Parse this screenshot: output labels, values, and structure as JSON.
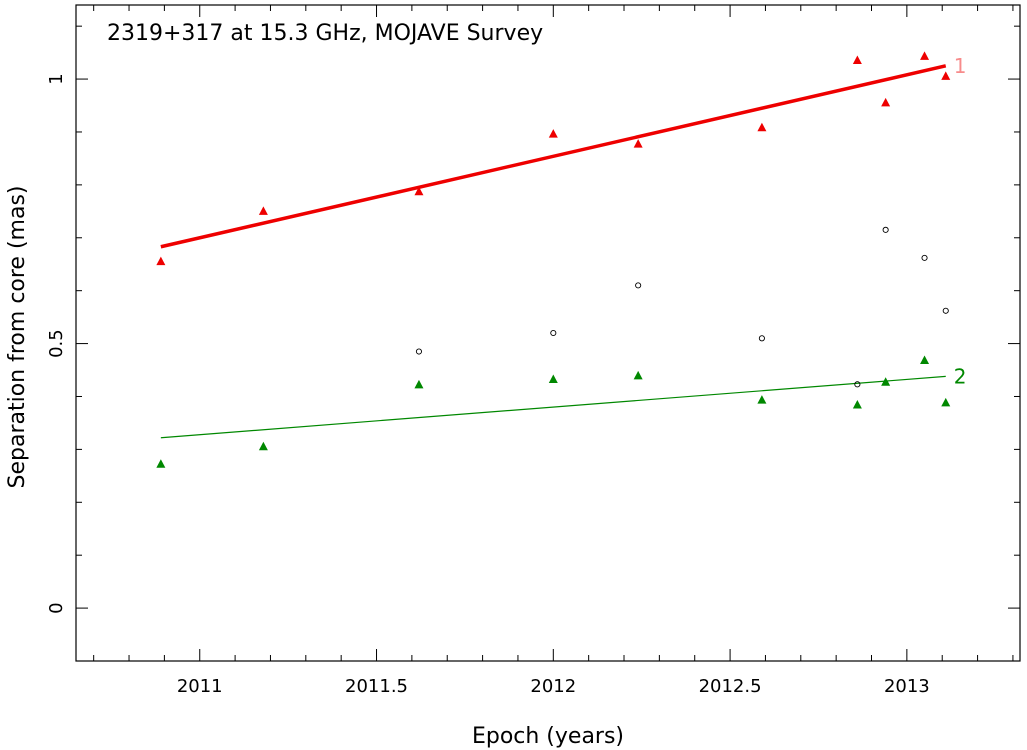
{
  "chart_data": {
    "type": "scatter",
    "title": "2319+317 at 15.3 GHz, MOJAVE Survey",
    "xlabel": "Epoch (years)",
    "ylabel": "Separation from core (mas)",
    "xlim": [
      2010.65,
      2013.32
    ],
    "ylim": [
      -0.1,
      1.14
    ],
    "x_ticks": [
      {
        "value": 2011,
        "label": "2011"
      },
      {
        "value": 2011.5,
        "label": "2011.5"
      },
      {
        "value": 2012,
        "label": "2012"
      },
      {
        "value": 2012.5,
        "label": "2012.5"
      },
      {
        "value": 2013,
        "label": "2013"
      }
    ],
    "x_minor_step": 0.1,
    "y_ticks": [
      {
        "value": 0,
        "label": "0"
      },
      {
        "value": 0.5,
        "label": "0.5"
      },
      {
        "value": 1,
        "label": "1"
      }
    ],
    "y_minor_step": 0.1,
    "grid": false,
    "series": [
      {
        "name": "1",
        "marker": "triangle",
        "color": "#ee0000",
        "points": [
          [
            2010.89,
            0.655
          ],
          [
            2011.18,
            0.75
          ],
          [
            2011.62,
            0.787
          ],
          [
            2012.0,
            0.896
          ],
          [
            2012.24,
            0.877
          ],
          [
            2012.59,
            0.908
          ],
          [
            2012.86,
            1.035
          ],
          [
            2012.94,
            0.955
          ],
          [
            2013.05,
            1.043
          ],
          [
            2013.11,
            1.005
          ]
        ],
        "fit": {
          "x": [
            2010.89,
            2013.11
          ],
          "y": [
            0.683,
            1.025
          ],
          "width": 3.5
        }
      },
      {
        "name": "2",
        "marker": "triangle",
        "color": "#008800",
        "points": [
          [
            2010.89,
            0.272
          ],
          [
            2011.18,
            0.305
          ],
          [
            2011.62,
            0.422
          ],
          [
            2012.0,
            0.432
          ],
          [
            2012.24,
            0.439
          ],
          [
            2012.59,
            0.393
          ],
          [
            2012.86,
            0.384
          ],
          [
            2012.94,
            0.427
          ],
          [
            2013.05,
            0.468
          ],
          [
            2013.11,
            0.388
          ]
        ],
        "fit": {
          "x": [
            2010.89,
            2013.11
          ],
          "y": [
            0.322,
            0.438
          ],
          "width": 1.2
        }
      },
      {
        "marker": "circle",
        "color": "#000000",
        "points": [
          [
            2011.62,
            0.485
          ],
          [
            2012.0,
            0.52
          ],
          [
            2012.24,
            0.61
          ],
          [
            2012.59,
            0.51
          ],
          [
            2012.86,
            0.423
          ],
          [
            2012.94,
            0.715
          ],
          [
            2013.05,
            0.662
          ],
          [
            2013.11,
            0.562
          ]
        ]
      }
    ]
  }
}
